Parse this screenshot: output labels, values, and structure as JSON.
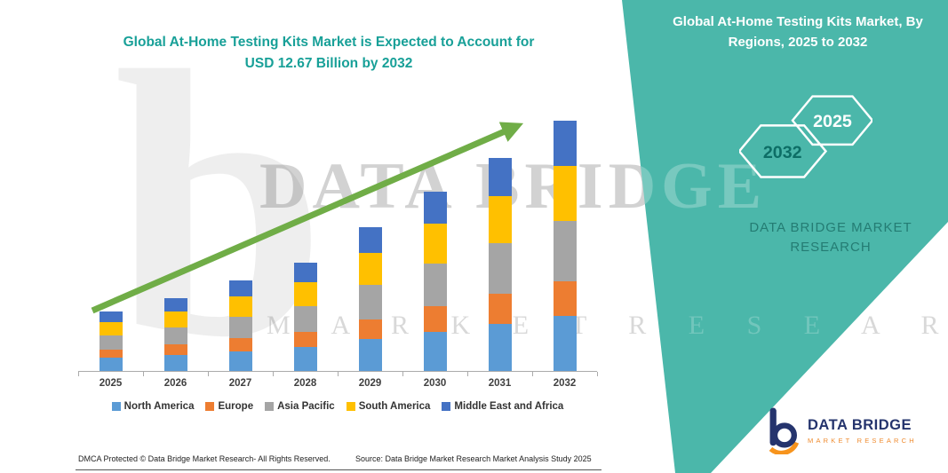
{
  "header": {
    "chart_title_line1": "Global At-Home Testing Kits Market is Expected to Account for",
    "chart_title_line2": "USD 12.67 Billion by 2032"
  },
  "chart_data": {
    "type": "bar",
    "stacked": true,
    "title": "Global At-Home Testing Kits Market is Expected to Account for USD 12.67 Billion by 2032",
    "unit": "USD Billion",
    "categories": [
      "2025",
      "2026",
      "2027",
      "2028",
      "2029",
      "2030",
      "2031",
      "2032"
    ],
    "series": [
      {
        "name": "North America",
        "color": "#5B9BD5",
        "values": [
          0.66,
          0.81,
          1.01,
          1.21,
          1.61,
          2.0,
          2.38,
          2.79
        ]
      },
      {
        "name": "Europe",
        "color": "#ED7D31",
        "values": [
          0.42,
          0.52,
          0.64,
          0.77,
          1.02,
          1.27,
          1.51,
          1.77
        ]
      },
      {
        "name": "Asia Pacific",
        "color": "#A5A5A5",
        "values": [
          0.72,
          0.89,
          1.1,
          1.32,
          1.75,
          2.18,
          2.59,
          3.04
        ]
      },
      {
        "name": "South America",
        "color": "#FFC000",
        "values": [
          0.66,
          0.81,
          1.01,
          1.21,
          1.61,
          2.0,
          2.38,
          2.79
        ]
      },
      {
        "name": "Middle East and Africa",
        "color": "#4472C4",
        "values": [
          0.54,
          0.67,
          0.83,
          0.99,
          1.31,
          1.64,
          1.94,
          2.28
        ]
      }
    ],
    "totals": [
      3.0,
      3.7,
      4.59,
      5.5,
      7.3,
      9.09,
      10.8,
      12.67
    ],
    "ylim": [
      0,
      14
    ],
    "grid": false,
    "legend_position": "bottom",
    "trend_arrow": true,
    "arrow_color": "#70AD47"
  },
  "panel": {
    "title": "Global At-Home Testing Kits Market, By Regions, 2025 to 2032",
    "hexagons": [
      {
        "label": "2032"
      },
      {
        "label": "2025"
      }
    ],
    "brand_line1": "DATA BRIDGE MARKET",
    "brand_line2": "RESEARCH",
    "background": "#4BB7AA"
  },
  "watermark": {
    "big_letter": "b",
    "line1": "DATA BRIDGE",
    "line2": "M A R K E T   R E S E A R C H"
  },
  "logo": {
    "letter": "b",
    "name_top": "DATA BRIDGE",
    "name_bottom": "MARKET RESEARCH"
  },
  "footer": {
    "left": "DMCA Protected © Data Bridge Market Research-  All Rights Reserved.",
    "source": "Source: Data Bridge Market Research  Market Analysis Study 2025"
  }
}
